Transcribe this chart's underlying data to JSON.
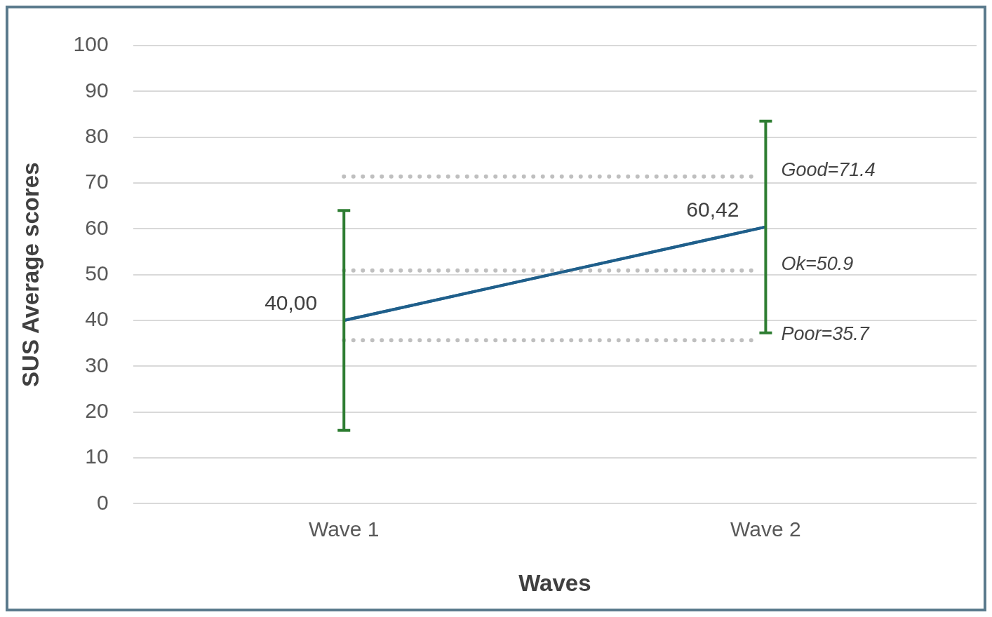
{
  "chart_data": {
    "type": "line",
    "xlabel": "Waves",
    "ylabel": "SUS Average scores",
    "categories": [
      "Wave 1",
      "Wave 2"
    ],
    "series": [
      {
        "color": "#1f5f8b",
        "values": [
          40.0,
          60.42
        ],
        "value_labels": [
          "40,00",
          "60,42"
        ],
        "errors": [
          24,
          [
            37.3,
            83.5
          ]
        ]
      }
    ],
    "ylim": [
      0,
      100
    ],
    "yticks": [
      0,
      10,
      20,
      30,
      40,
      50,
      60,
      70,
      80,
      90,
      100
    ],
    "grid": "y",
    "legend": false,
    "marker": "none",
    "ref_lines": [
      {
        "axis": "y",
        "value": 71.4,
        "label": "Good=71.4",
        "color": "#bfbfbf",
        "line_style": "dotted"
      },
      {
        "axis": "y",
        "value": 50.9,
        "label": "Ok=50.9",
        "color": "#bfbfbf",
        "line_style": "dotted"
      },
      {
        "axis": "y",
        "value": 35.7,
        "label": "Poor=35.7",
        "color": "#bfbfbf",
        "line_style": "dotted"
      }
    ]
  }
}
